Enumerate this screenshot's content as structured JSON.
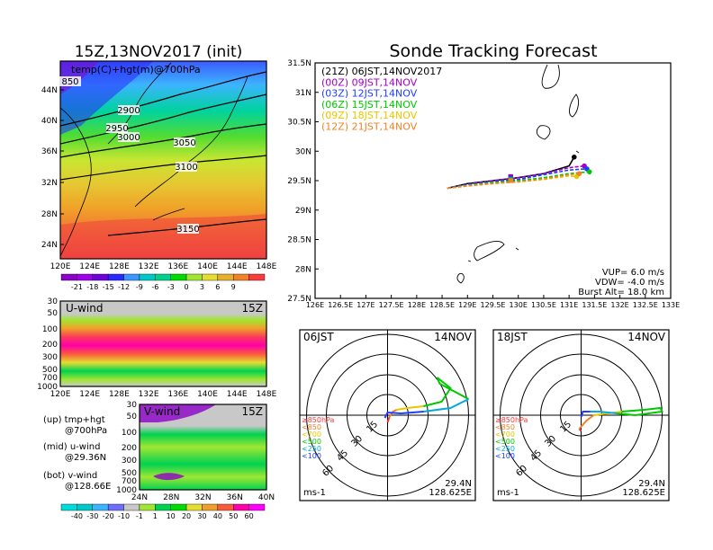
{
  "header": {
    "left_title": "15Z,13NOV2017 (init)",
    "right_title": "Sonde Tracking Forecast"
  },
  "map_panel": {
    "label": "temp(C)+hgt(m)@700hPa",
    "contour_labels": [
      "850",
      "2900",
      "2950",
      "3000",
      "3050",
      "3100",
      "3150"
    ],
    "lat_ticks": [
      "44N",
      "40N",
      "36N",
      "32N",
      "28N",
      "24N"
    ],
    "lon_ticks": [
      "120E",
      "124E",
      "128E",
      "132E",
      "136E",
      "140E",
      "144E",
      "148E"
    ],
    "colorbar_labels": [
      "-21",
      "-18",
      "-15",
      "-12",
      "-9",
      "-6",
      "-3",
      "0",
      "3",
      "6",
      "9"
    ],
    "colorbar_colors": [
      "#8c00c8",
      "#a000e6",
      "#6e00dc",
      "#2828ff",
      "#3c96ff",
      "#00c8c8",
      "#00d28c",
      "#00dc00",
      "#a0e632",
      "#e6dc32",
      "#e6af2d",
      "#f08228",
      "#fa3c3c"
    ]
  },
  "uwind_panel": {
    "label": "U-wind",
    "time": "15Z",
    "p_ticks": [
      "30",
      "50",
      "100",
      "200",
      "300",
      "500",
      "700",
      "1000"
    ],
    "lon_ticks": [
      "120E",
      "124E",
      "128E",
      "132E",
      "136E",
      "140E",
      "144E",
      "148E"
    ]
  },
  "vwind_panel": {
    "label": "V-wind",
    "time": "15Z",
    "p_ticks": [
      "30",
      "50",
      "100",
      "200",
      "300",
      "500",
      "700",
      "1000"
    ],
    "lat_ticks": [
      "24N",
      "28N",
      "32N",
      "36N",
      "40N"
    ],
    "colorbar_labels": [
      "-40",
      "-30",
      "-20",
      "-10",
      "-1",
      "1",
      "10",
      "20",
      "30",
      "40",
      "50",
      "60"
    ],
    "colorbar_colors": [
      "#00dcdc",
      "#00c8c8",
      "#3cb4ff",
      "#6e6eff",
      "#c8c8c8",
      "#a0e632",
      "#00d250",
      "#00dc00",
      "#e6dc32",
      "#f0a028",
      "#fa5a3c",
      "#ff00aa",
      "#ff00ff"
    ]
  },
  "legend_notes": {
    "up": "(up) tmp+hgt",
    "up2": "@700hPa",
    "mid": "(mid) u-wind",
    "mid2": "@29.36N",
    "bot": "(bot) v-wind",
    "bot2": "@128.66E"
  },
  "track_panel": {
    "legend": [
      {
        "label": "(21Z)  06JST,14NOV2017",
        "color": "#000000"
      },
      {
        "label": "(00Z)  09JST,14NOV",
        "color": "#a000c8"
      },
      {
        "label": "(03Z)  12JST,14NOV",
        "color": "#1e3cff"
      },
      {
        "label": "(06Z)  15JST,14NOV",
        "color": "#00c800"
      },
      {
        "label": "(09Z)  18JST,14NOV",
        "color": "#e6c800"
      },
      {
        "label": "(12Z)  21JST,14NOV",
        "color": "#f08228"
      }
    ],
    "lat_ticks": [
      "31.5N",
      "31N",
      "30.5N",
      "30N",
      "29.5N",
      "29N",
      "28.5N",
      "28N",
      "27.5N"
    ],
    "lon_ticks": [
      "126E",
      "126.5E",
      "127E",
      "127.5E",
      "128E",
      "128.5E",
      "129E",
      "129.5E",
      "130E",
      "130.5E",
      "131E",
      "131.5E",
      "132E",
      "132.5E",
      "133E"
    ],
    "info": [
      "VUP=  6.0  m/s",
      "VDW= -4.0  m/s",
      "Burst Alt=  18.0  km"
    ]
  },
  "hodo_left": {
    "time": "06JST",
    "date": "14NOV",
    "radius_labels": [
      "15",
      "30",
      "45",
      "60"
    ],
    "unit": "ms-1",
    "lat": "29.4N",
    "lon": "128.625E",
    "levels": [
      {
        "label": "≥850hPa",
        "color": "#f03c3c"
      },
      {
        "label": "<850",
        "color": "#f08228"
      },
      {
        "label": "<700",
        "color": "#e6c800"
      },
      {
        "label": "<500",
        "color": "#00c800"
      },
      {
        "label": "<250",
        "color": "#00aadc"
      },
      {
        "label": "<100",
        "color": "#1e3cff"
      }
    ]
  },
  "hodo_right": {
    "time": "18JST",
    "date": "14NOV",
    "radius_labels": [
      "15",
      "30",
      "45",
      "60"
    ],
    "unit": "ms-1",
    "lat": "29.4N",
    "lon": "128.625E",
    "levels": [
      {
        "label": "≥850hPa",
        "color": "#f03c3c"
      },
      {
        "label": "<850",
        "color": "#f08228"
      },
      {
        "label": "<700",
        "color": "#e6c800"
      },
      {
        "label": "<500",
        "color": "#00c800"
      },
      {
        "label": "<250",
        "color": "#00aadc"
      },
      {
        "label": "<100",
        "color": "#1e3cff"
      }
    ]
  },
  "chart_data": [
    {
      "type": "line",
      "title": "Sonde Tracking Forecast",
      "xlim": [
        126,
        133
      ],
      "ylim": [
        27.5,
        31.5
      ],
      "series": [
        {
          "name": "(21Z)  06JST,14NOV2017",
          "x": [
            128.6,
            129.0,
            129.5,
            130.0,
            130.5,
            131.0,
            131.1
          ],
          "y": [
            29.37,
            29.45,
            29.5,
            29.55,
            29.62,
            29.75,
            29.9
          ]
        },
        {
          "name": "(00Z)  09JST,14NOV",
          "x": [
            128.6,
            129.0,
            129.5,
            130.0,
            130.5,
            131.0,
            131.3
          ],
          "y": [
            29.37,
            29.44,
            29.5,
            29.55,
            29.62,
            29.72,
            29.75
          ]
        },
        {
          "name": "(03Z)  12JST,14NOV",
          "x": [
            128.6,
            129.0,
            129.5,
            130.0,
            130.5,
            131.0,
            131.35
          ],
          "y": [
            29.37,
            29.43,
            29.48,
            29.52,
            29.6,
            29.68,
            29.7
          ]
        },
        {
          "name": "(06Z)  15JST,14NOV",
          "x": [
            128.6,
            129.0,
            129.5,
            130.0,
            130.5,
            131.0,
            131.4
          ],
          "y": [
            29.37,
            29.42,
            29.47,
            29.5,
            29.55,
            29.62,
            29.65
          ]
        },
        {
          "name": "(09Z)  18JST,14NOV",
          "x": [
            128.6,
            129.0,
            129.5,
            130.0,
            130.5,
            131.0,
            131.15
          ],
          "y": [
            29.37,
            29.41,
            29.45,
            29.48,
            29.52,
            29.58,
            29.57
          ]
        },
        {
          "name": "(12Z)  21JST,14NOV",
          "x": [
            128.6,
            129.0,
            129.5,
            130.0,
            130.5,
            131.0,
            131.2
          ],
          "y": [
            29.37,
            29.41,
            29.45,
            29.48,
            29.53,
            29.6,
            29.62
          ]
        }
      ]
    }
  ]
}
